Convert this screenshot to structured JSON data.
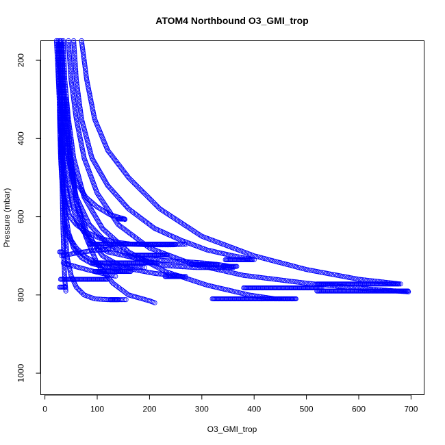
{
  "chart_data": {
    "type": "scatter",
    "title": "ATOM4 Northbound O3_GMI_trop",
    "xlabel": "O3_GMI_trop",
    "ylabel": "Pressure (mbar)",
    "xlim": [
      -8,
      725
    ],
    "ylim": [
      1055,
      150
    ],
    "y_axis_inverted": true,
    "x_ticks": [
      0,
      100,
      200,
      300,
      400,
      500,
      600,
      700
    ],
    "y_ticks": [
      200,
      400,
      600,
      800,
      1000
    ],
    "marker": "open-circle",
    "marker_color": "#0000ff",
    "grid": false,
    "legend": "none",
    "series": [
      {
        "x": [
          25,
          27,
          28,
          30,
          32,
          35,
          40,
          48,
          60,
          80,
          105,
          135,
          165,
          200,
          240,
          270
        ],
        "y": [
          150,
          250,
          350,
          450,
          500,
          540,
          570,
          600,
          620,
          640,
          655,
          665,
          670,
          672,
          672,
          670
        ]
      },
      {
        "x": [
          28,
          31,
          35,
          40,
          48,
          60,
          78,
          100,
          125,
          150,
          153
        ],
        "y": [
          150,
          250,
          350,
          420,
          470,
          510,
          550,
          575,
          595,
          605,
          607
        ]
      },
      {
        "x": [
          55,
          60,
          70,
          90,
          120,
          160,
          210,
          260,
          310,
          360,
          400
        ],
        "y": [
          150,
          250,
          350,
          450,
          520,
          580,
          630,
          660,
          685,
          700,
          710
        ]
      },
      {
        "x": [
          70,
          80,
          95,
          120,
          160,
          220,
          300,
          400,
          500,
          600,
          680
        ],
        "y": [
          150,
          250,
          350,
          430,
          500,
          580,
          650,
          700,
          735,
          760,
          772
        ]
      },
      {
        "x": [
          45,
          50,
          60,
          75,
          100,
          140,
          200,
          280,
          380,
          500,
          620,
          695
        ],
        "y": [
          150,
          250,
          350,
          450,
          540,
          620,
          680,
          720,
          750,
          770,
          785,
          792
        ]
      },
      {
        "x": [
          35,
          38,
          45,
          55,
          75,
          110,
          160,
          230,
          310,
          390,
          440,
          480
        ],
        "y": [
          150,
          250,
          350,
          450,
          550,
          630,
          690,
          740,
          775,
          800,
          810,
          810
        ]
      },
      {
        "x": [
          30,
          33,
          38,
          45,
          60,
          85,
          120,
          170,
          230,
          290,
          330,
          360
        ],
        "y": [
          150,
          250,
          350,
          450,
          550,
          620,
          670,
          705,
          725,
          730,
          730,
          730
        ]
      },
      {
        "x": [
          32,
          35,
          40,
          48,
          60,
          78,
          100,
          130,
          160,
          200,
          210
        ],
        "y": [
          150,
          250,
          350,
          450,
          560,
          650,
          720,
          770,
          800,
          815,
          820
        ]
      },
      {
        "x": [
          33,
          34,
          35,
          38,
          42,
          50,
          60,
          75,
          95,
          120,
          140,
          155
        ],
        "y": [
          300,
          420,
          520,
          620,
          700,
          750,
          780,
          800,
          810,
          812,
          812,
          812
        ]
      },
      {
        "x": [
          40,
          50,
          60,
          80,
          110,
          150,
          210,
          260
        ],
        "y": [
          300,
          450,
          560,
          640,
          700,
          730,
          745,
          752
        ]
      },
      {
        "x": [
          35,
          45,
          60,
          85,
          120,
          170,
          230,
          270,
          300,
          330,
          360
        ],
        "y": [
          380,
          520,
          610,
          660,
          690,
          705,
          712,
          715,
          718,
          722,
          728
        ]
      },
      {
        "x": [
          30,
          33,
          38,
          45,
          55,
          70,
          90,
          115,
          140,
          165,
          190
        ],
        "y": [
          400,
          500,
          580,
          640,
          680,
          705,
          720,
          728,
          730,
          730,
          730
        ]
      },
      {
        "x": [
          28,
          30,
          32,
          34,
          36,
          38,
          40
        ],
        "y": [
          150,
          300,
          450,
          600,
          700,
          760,
          790
        ]
      },
      {
        "x": [
          32,
          40,
          55,
          75,
          95,
          115,
          130
        ],
        "y": [
          700,
          698,
          694,
          690,
          686,
          684,
          682
        ]
      },
      {
        "x": [
          35,
          45,
          60,
          80,
          100,
          120,
          135
        ],
        "y": [
          718,
          722,
          728,
          735,
          742,
          748,
          752
        ]
      },
      {
        "x": [
          22,
          24,
          26,
          28,
          30,
          34,
          40,
          48
        ],
        "y": [
          150,
          200,
          260,
          320,
          380,
          450,
          520,
          580
        ]
      },
      {
        "x": [
          38,
          45,
          60,
          80,
          110,
          150
        ],
        "y": [
          620,
          650,
          680,
          705,
          725,
          740
        ]
      }
    ],
    "dense_segments": [
      {
        "x": [
          85,
          250
        ],
        "y": 670
      },
      {
        "x": [
          170,
          235
        ],
        "y": 698
      },
      {
        "x": [
          90,
          215
        ],
        "y": 718
      },
      {
        "x": [
          30,
          120
        ],
        "y": 760
      },
      {
        "x": [
          95,
          165
        ],
        "y": 740
      },
      {
        "x": [
          230,
          270
        ],
        "y": 753
      },
      {
        "x": [
          140,
          153
        ],
        "y": 606
      },
      {
        "x": [
          345,
          398
        ],
        "y": 710
      },
      {
        "x": [
          280,
          330
        ],
        "y": 722
      },
      {
        "x": [
          340,
          368
        ],
        "y": 727
      },
      {
        "x": [
          520,
          678
        ],
        "y": 772
      },
      {
        "x": [
          380,
          530
        ],
        "y": 782
      },
      {
        "x": [
          520,
          695
        ],
        "y": 790
      },
      {
        "x": [
          320,
          480
        ],
        "y": 810
      },
      {
        "x": [
          28,
          40
        ],
        "y": 780
      },
      {
        "x": [
          28,
          35
        ],
        "y": 690
      },
      {
        "x": [
          125,
          142
        ],
        "y": 812
      }
    ]
  }
}
